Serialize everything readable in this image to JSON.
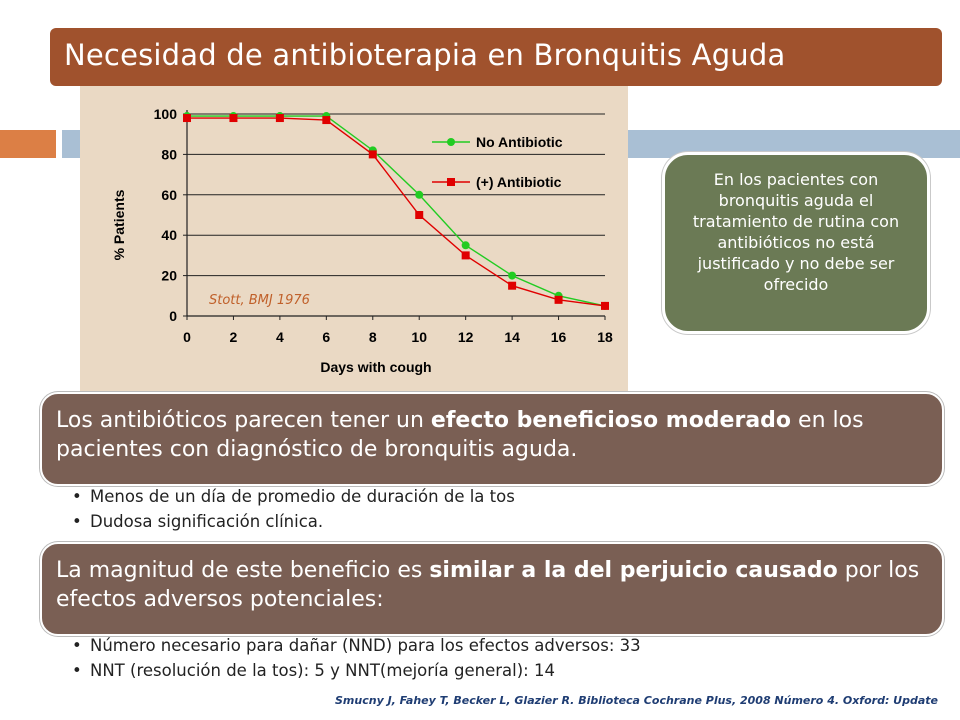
{
  "title": "Necesidad de antibioterapia en Bronquitis Aguda",
  "callout": "En los pacientes con bronquitis aguda el tratamiento de rutina con antibióticos no está justificado y no debe ser ofrecido",
  "box1": {
    "pre": "Los antibióticos parecen tener un ",
    "bold": "efecto beneficioso moderado",
    "post": " en los pacientes con diagnóstico de bronquitis aguda."
  },
  "bullets1": [
    "Menos de un día de promedio de duración de la tos",
    "Dudosa significación clínica."
  ],
  "box2": {
    "pre": "La magnitud de este beneficio es ",
    "bold": "similar a la del perjuicio causado",
    "post": " por los efectos adversos potenciales:"
  },
  "bullets2": [
    "Número necesario para dañar (NND) para los efectos adversos: 33",
    "NNT (resolución de la tos): 5 y  NNT(mejoría general): 14"
  ],
  "citation": "Smucny J, Fahey T, Becker L, Glazier R. Biblioteca Cochrane Plus, 2008 Número 4. Oxford: Update",
  "chart_data": {
    "type": "line",
    "xlabel": "Days with cough",
    "ylabel": "% Patients",
    "annotation": "Stott, BMJ 1976",
    "xlim": [
      0,
      18
    ],
    "ylim": [
      0,
      100
    ],
    "xticks": [
      "0",
      "2",
      "4",
      "6",
      "8",
      "10",
      "12",
      "14",
      "16",
      "18"
    ],
    "yticks": [
      "0",
      "20",
      "40",
      "60",
      "80",
      "100"
    ],
    "grid": "horizontal",
    "legend_position": "top-right",
    "x": [
      0,
      2,
      4,
      6,
      8,
      10,
      12,
      14,
      16,
      18
    ],
    "series": [
      {
        "name": "No Antibiotic",
        "color": "#22cc22",
        "marker": "circle",
        "values": [
          99,
          99,
          99,
          99,
          82,
          60,
          35,
          20,
          10,
          5
        ]
      },
      {
        "name": "(+) Antibiotic",
        "color": "#e00000",
        "marker": "square",
        "values": [
          98,
          98,
          98,
          97,
          80,
          50,
          30,
          15,
          8,
          5
        ]
      }
    ]
  }
}
